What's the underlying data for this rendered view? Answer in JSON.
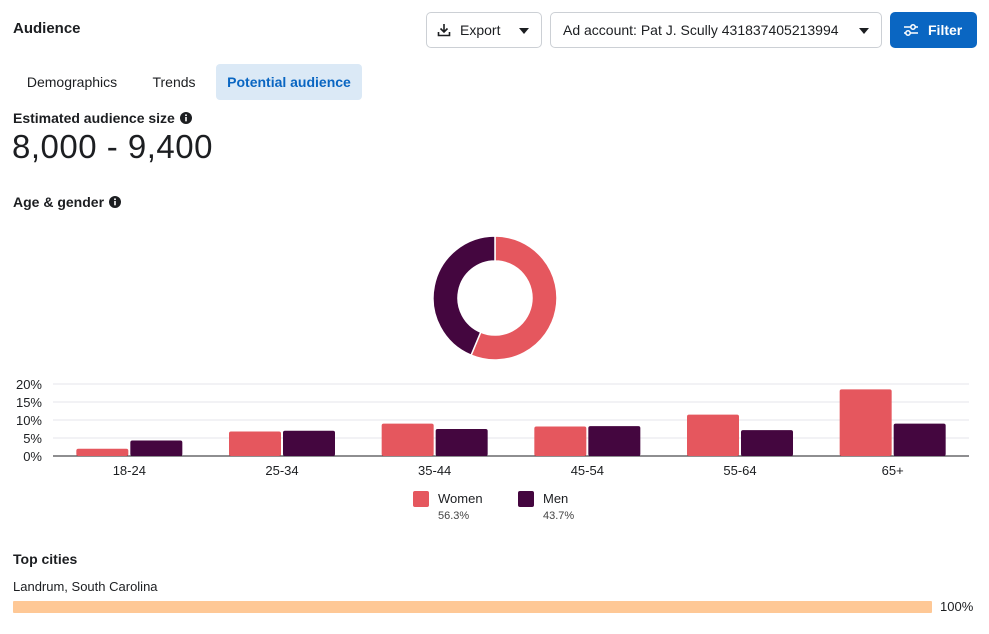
{
  "header": {
    "title": "Audience"
  },
  "toolbar": {
    "export_label": "Export",
    "ad_account_label": "Ad account: Pat J. Scully 431837405213994",
    "filter_label": "Filter",
    "accent_color": "#0a66c2"
  },
  "tabs": [
    {
      "label": "Demographics",
      "active": false
    },
    {
      "label": "Trends",
      "active": false
    },
    {
      "label": "Potential audience",
      "active": true
    }
  ],
  "estimated": {
    "label": "Estimated audience size",
    "value": "8,000 - 9,400"
  },
  "age_gender": {
    "label": "Age & gender"
  },
  "legend": [
    {
      "name": "Women",
      "pct": "56.3%",
      "color": "#e5575e"
    },
    {
      "name": "Men",
      "pct": "43.7%",
      "color": "#44063f"
    }
  ],
  "chart_data": [
    {
      "type": "pie",
      "style": "donut",
      "categories": [
        "Women",
        "Men"
      ],
      "values": [
        56.3,
        43.7
      ],
      "colors": [
        "#e5575e",
        "#44063f"
      ]
    },
    {
      "type": "bar",
      "categories": [
        "18-24",
        "25-34",
        "35-44",
        "45-54",
        "55-64",
        "65+"
      ],
      "series": [
        {
          "name": "Women",
          "values": [
            2,
            6.8,
            9,
            8.2,
            11.5,
            18.5
          ],
          "color": "#e5575e"
        },
        {
          "name": "Men",
          "values": [
            4.3,
            7,
            7.5,
            8.3,
            7.2,
            9
          ],
          "color": "#44063f"
        }
      ],
      "yticks": [
        "0%",
        "5%",
        "10%",
        "15%",
        "20%"
      ],
      "ylim": [
        0,
        20
      ],
      "grid": true,
      "legend_position": "bottom"
    }
  ],
  "top_cities": {
    "label": "Top cities",
    "items": [
      {
        "name": "Landrum, South Carolina",
        "pct_label": "100%",
        "fraction": 1.0,
        "color": "#fec896"
      }
    ]
  }
}
